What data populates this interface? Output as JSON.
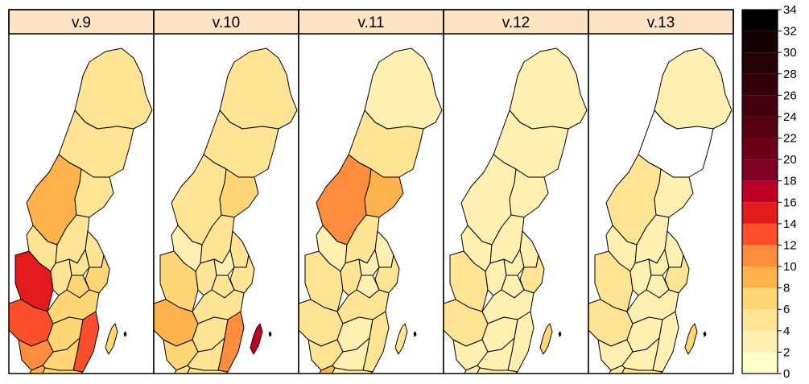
{
  "panels": [
    {
      "label": "v.9",
      "regions": {
        "north1": 4,
        "north2": 5,
        "jamt": 8,
        "vnorr": 5,
        "dala": 4,
        "gavle": 5,
        "varm": 15,
        "orebro": 5,
        "vmanl": 5,
        "upps": 5,
        "sthlm": 6,
        "vgot": 12,
        "ostg": 6,
        "sodm": 7,
        "jkpg": 6,
        "kalm": 12,
        "krono": 7,
        "halland": 11,
        "skane": 9,
        "gotl": 6,
        "blek": 7
      }
    },
    {
      "label": "v.10",
      "regions": {
        "north1": 4,
        "north2": 5,
        "jamt": 4,
        "vnorr": 7,
        "dala": 2,
        "gavle": 4,
        "varm": 7,
        "orebro": 4,
        "vmanl": 3,
        "upps": 4,
        "sthlm": 5,
        "vgot": 8,
        "ostg": 5,
        "sodm": 4,
        "jkpg": 4,
        "kalm": 11,
        "krono": 4,
        "halland": 6,
        "skane": 5,
        "gotl": 17,
        "blek": 4
      }
    },
    {
      "label": "v.11",
      "regions": {
        "north1": 2,
        "north2": 4,
        "jamt": 10,
        "vnorr": 8,
        "dala": 3,
        "gavle": 4,
        "varm": 4,
        "orebro": 4,
        "vmanl": 3,
        "upps": 3,
        "sthlm": 4,
        "vgot": 5,
        "ostg": 4,
        "sodm": 3,
        "jkpg": 3,
        "kalm": 4,
        "krono": 3,
        "halland": 5,
        "skane": 8,
        "gotl": 4,
        "blek": 3
      }
    },
    {
      "label": "v.12",
      "regions": {
        "north1": 3,
        "north2": 3,
        "jamt": 3,
        "vnorr": 3,
        "dala": 2,
        "gavle": 3,
        "varm": 4,
        "orebro": 3,
        "vmanl": 2,
        "upps": 3,
        "sthlm": 4,
        "vgot": 4,
        "ostg": 3,
        "sodm": 2,
        "jkpg": 3,
        "kalm": 3,
        "krono": 3,
        "halland": 3,
        "skane": 3,
        "gotl": 6,
        "blek": 2
      }
    },
    {
      "label": "v.13",
      "regions": {
        "north1": 3,
        "north2": 0,
        "jamt": 5,
        "vnorr": 3,
        "dala": 2,
        "gavle": 3,
        "varm": 4,
        "orebro": 3,
        "vmanl": 2,
        "upps": 3,
        "sthlm": 5,
        "vgot": 4,
        "ostg": 3,
        "sodm": 2,
        "jkpg": 3,
        "kalm": 3,
        "krono": 3,
        "halland": 3,
        "skane": 3,
        "gotl": 6,
        "blek": 4
      }
    }
  ],
  "legend": {
    "min": 0,
    "max": 34,
    "step": 2,
    "ticks": [
      "34",
      "32",
      "30",
      "28",
      "26",
      "24",
      "22",
      "20",
      "18",
      "16",
      "14",
      "12",
      "10",
      "8",
      "6",
      "4",
      "2",
      "0"
    ],
    "colors": [
      "#ffffcc",
      "#fff0b1",
      "#ffe494",
      "#fed676",
      "#feb24c",
      "#fd8d3c",
      "#fc4e2a",
      "#e31a1c",
      "#bd0026",
      "#800026",
      "#6b0017",
      "#560012",
      "#44000e",
      "#32000a",
      "#220006",
      "#150003",
      "#000000"
    ]
  },
  "colors": {
    "strip_bg": "#ffe4c4",
    "border": "#000000",
    "background": "#ffffff"
  }
}
